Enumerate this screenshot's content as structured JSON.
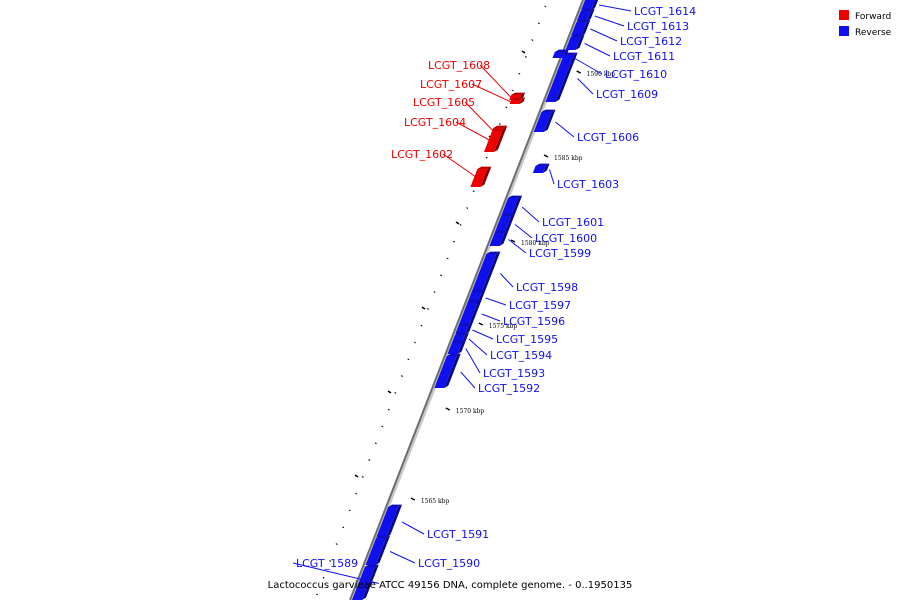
{
  "caption": "Lactococcus garvieae ATCC 49156 DNA, complete genome. - 0..1950135",
  "legend": [
    {
      "label": "Forward",
      "color": "#ee0000"
    },
    {
      "label": "Reverse",
      "color": "#1010ee"
    }
  ],
  "scale": {
    "ticks": [
      "1565 kbp",
      "1570 kbp",
      "1575 kbp",
      "1580 kbp",
      "1585 kbp",
      "1590 kbp"
    ]
  },
  "genes": [
    {
      "id": "LCGT_1614",
      "strand": "reverse"
    },
    {
      "id": "LCGT_1613",
      "strand": "reverse"
    },
    {
      "id": "LCGT_1612",
      "strand": "reverse"
    },
    {
      "id": "LCGT_1611",
      "strand": "reverse"
    },
    {
      "id": "LCGT_1610",
      "strand": "reverse"
    },
    {
      "id": "LCGT_1609",
      "strand": "reverse"
    },
    {
      "id": "LCGT_1608",
      "strand": "forward"
    },
    {
      "id": "LCGT_1607",
      "strand": "forward"
    },
    {
      "id": "LCGT_1606",
      "strand": "reverse"
    },
    {
      "id": "LCGT_1605",
      "strand": "forward"
    },
    {
      "id": "LCGT_1604",
      "strand": "forward"
    },
    {
      "id": "LCGT_1603",
      "strand": "reverse"
    },
    {
      "id": "LCGT_1602",
      "strand": "forward"
    },
    {
      "id": "LCGT_1601",
      "strand": "reverse"
    },
    {
      "id": "LCGT_1600",
      "strand": "reverse"
    },
    {
      "id": "LCGT_1599",
      "strand": "reverse"
    },
    {
      "id": "LCGT_1598",
      "strand": "reverse"
    },
    {
      "id": "LCGT_1597",
      "strand": "reverse"
    },
    {
      "id": "LCGT_1596",
      "strand": "reverse"
    },
    {
      "id": "LCGT_1595",
      "strand": "reverse"
    },
    {
      "id": "LCGT_1594",
      "strand": "reverse"
    },
    {
      "id": "LCGT_1593",
      "strand": "reverse"
    },
    {
      "id": "LCGT_1592",
      "strand": "reverse"
    },
    {
      "id": "LCGT_1591",
      "strand": "reverse"
    },
    {
      "id": "LCGT_1590",
      "strand": "reverse"
    },
    {
      "id": "LCGT_1589",
      "strand": "reverse"
    }
  ]
}
